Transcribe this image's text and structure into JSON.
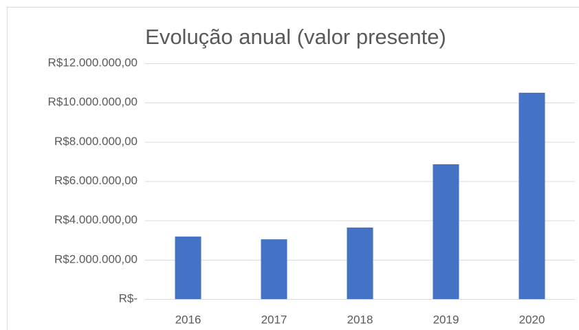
{
  "chart_data": {
    "type": "bar",
    "title": "Evolução anual (valor presente)",
    "categories": [
      "2016",
      "2017",
      "2018",
      "2019",
      "2020"
    ],
    "values": [
      3180000,
      3040000,
      3640000,
      6860000,
      10500000
    ],
    "color": "#4472c4",
    "ylim": [
      0,
      12000000
    ],
    "yticks": [
      {
        "value": 0,
        "label": "R$-"
      },
      {
        "value": 2000000,
        "label": "R$2.000.000,00"
      },
      {
        "value": 4000000,
        "label": "R$4.000.000,00"
      },
      {
        "value": 6000000,
        "label": "R$6.000.000,00"
      },
      {
        "value": 8000000,
        "label": "R$8.000.000,00"
      },
      {
        "value": 10000000,
        "label": "R$10.000.000,00"
      },
      {
        "value": 12000000,
        "label": "R$12.000.000,00"
      }
    ],
    "grid": true
  }
}
